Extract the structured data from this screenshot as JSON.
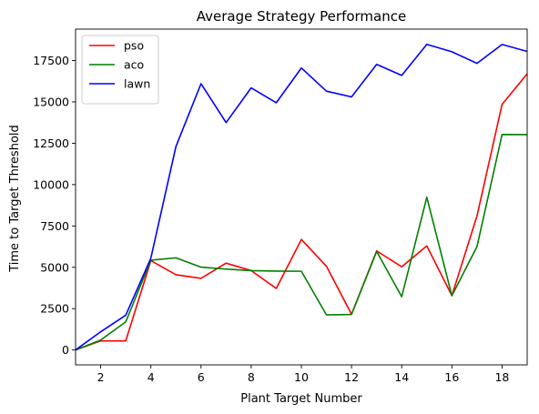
{
  "chart_data": {
    "type": "line",
    "title": "Average Strategy Performance",
    "xlabel": "Plant Target Number",
    "ylabel": "Time to Target Threshold",
    "xlim": [
      1,
      19
    ],
    "ylim": [
      -900,
      19400
    ],
    "xticks": [
      2,
      4,
      6,
      8,
      10,
      12,
      14,
      16,
      18
    ],
    "yticks": [
      0,
      2500,
      5000,
      7500,
      10000,
      12500,
      15000,
      17500
    ],
    "grid": false,
    "legend_position": "top-left",
    "x": [
      1,
      2,
      3,
      4,
      5,
      6,
      7,
      8,
      9,
      10,
      11,
      12,
      13,
      14,
      15,
      16,
      17,
      18,
      19
    ],
    "series": [
      {
        "name": "pso",
        "color": "#ff0000",
        "values": [
          0,
          550,
          550,
          5400,
          4550,
          4330,
          5250,
          4800,
          3720,
          6680,
          5060,
          2160,
          5990,
          5030,
          6290,
          3290,
          8100,
          14850,
          16700
        ]
      },
      {
        "name": "aco",
        "color": "#008000",
        "values": [
          0,
          600,
          1700,
          5430,
          5570,
          5010,
          4890,
          4800,
          4770,
          4760,
          2120,
          2150,
          5960,
          3220,
          9230,
          3280,
          6250,
          13030,
          13020
        ]
      },
      {
        "name": "lawn",
        "color": "#0000ff",
        "values": [
          0,
          1100,
          2100,
          5550,
          12300,
          16100,
          13750,
          15850,
          14950,
          17050,
          15650,
          15300,
          17270,
          16600,
          18480,
          18030,
          17330,
          18470,
          18050
        ]
      }
    ]
  }
}
